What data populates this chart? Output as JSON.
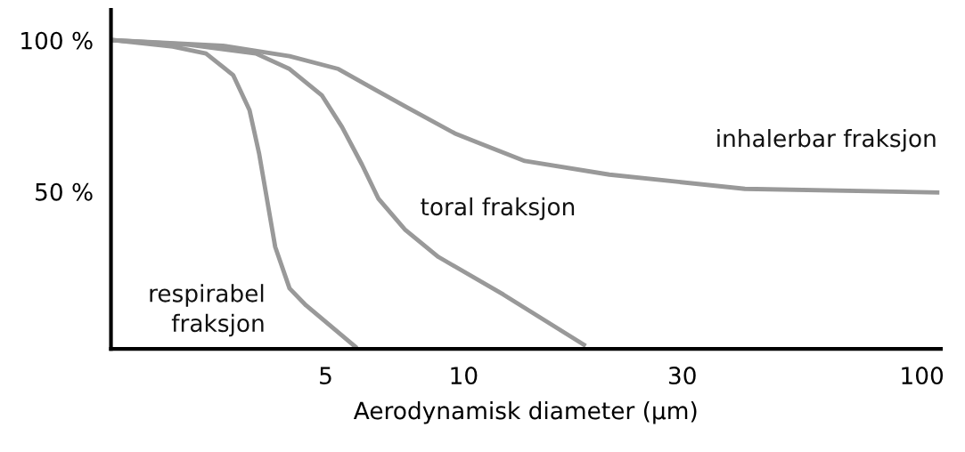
{
  "chart_data": {
    "type": "line",
    "xlabel": "Aerodynamisk diameter (µm)",
    "xlim": [
      1.7,
      110
    ],
    "ylim": [
      -2,
      110
    ],
    "log": "x",
    "xticks": [
      5,
      10,
      30,
      100
    ],
    "yticks": [
      {
        "value": 100,
        "label": "100 %"
      },
      {
        "value": 50,
        "label": "50 %"
      }
    ],
    "grid": false,
    "legend": false,
    "marker": "none",
    "line_style": "solid",
    "series": [
      {
        "name": "respirabel fraksjon",
        "color": "#999999",
        "x": [
          1.72,
          2.32,
          2.74,
          3.14,
          3.41,
          3.58,
          3.71,
          3.88,
          4.17,
          4.53,
          5.8
        ],
        "values": [
          100,
          97.9,
          95.6,
          88.5,
          76.9,
          62.4,
          48.8,
          31.7,
          18.0,
          12.4,
          -1.2
        ]
      },
      {
        "name": "toral fraksjon",
        "color": "#999999",
        "x": [
          1.72,
          2.52,
          3.52,
          4.17,
          4.91,
          5.43,
          6.0,
          6.52,
          7.46,
          8.81,
          12.2,
          18.3
        ],
        "values": [
          100,
          98.5,
          95.6,
          90.5,
          81.7,
          71.3,
          58.9,
          47.6,
          37.3,
          28.4,
          16.0,
          -0.6
        ]
      },
      {
        "name": "inhalerbar fraksjon",
        "color": "#999999",
        "x": [
          1.72,
          2.98,
          4.17,
          5.33,
          6.3,
          7.46,
          9.57,
          10.8,
          13.6,
          20.8,
          41.1,
          108
        ],
        "values": [
          100,
          98.2,
          94.7,
          90.5,
          84.3,
          78.1,
          69.2,
          66.0,
          60.1,
          55.6,
          50.9,
          49.7
        ]
      }
    ]
  }
}
